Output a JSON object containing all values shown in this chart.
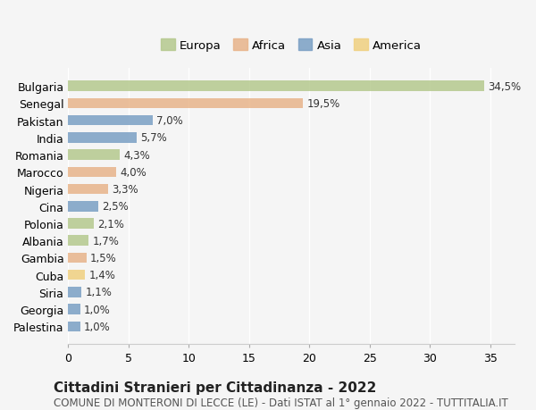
{
  "countries": [
    "Bulgaria",
    "Senegal",
    "Pakistan",
    "India",
    "Romania",
    "Marocco",
    "Nigeria",
    "Cina",
    "Polonia",
    "Albania",
    "Gambia",
    "Cuba",
    "Siria",
    "Georgia",
    "Palestina"
  ],
  "values": [
    34.5,
    19.5,
    7.0,
    5.7,
    4.3,
    4.0,
    3.3,
    2.5,
    2.1,
    1.7,
    1.5,
    1.4,
    1.1,
    1.0,
    1.0
  ],
  "labels": [
    "34,5%",
    "19,5%",
    "7,0%",
    "5,7%",
    "4,3%",
    "4,0%",
    "3,3%",
    "2,5%",
    "2,1%",
    "1,7%",
    "1,5%",
    "1,4%",
    "1,1%",
    "1,0%",
    "1,0%"
  ],
  "continents": [
    "Europa",
    "Africa",
    "Asia",
    "Asia",
    "Europa",
    "Africa",
    "Africa",
    "Asia",
    "Europa",
    "Europa",
    "Africa",
    "America",
    "Asia",
    "Asia",
    "Asia"
  ],
  "colors": {
    "Europa": "#b5c98e",
    "Africa": "#e8b48a",
    "Asia": "#7a9fc4",
    "America": "#f0d080"
  },
  "legend_order": [
    "Europa",
    "Africa",
    "Asia",
    "America"
  ],
  "legend_colors": [
    "#b5c98e",
    "#e8b48a",
    "#7a9fc4",
    "#f0d080"
  ],
  "xlim": [
    0,
    37
  ],
  "xticks": [
    0,
    5,
    10,
    15,
    20,
    25,
    30,
    35
  ],
  "background_color": "#f5f5f5",
  "title": "Cittadini Stranieri per Cittadinanza - 2022",
  "subtitle": "COMUNE DI MONTERONI DI LECCE (LE) - Dati ISTAT al 1° gennaio 2022 - TUTTITALIA.IT",
  "title_fontsize": 11,
  "subtitle_fontsize": 8.5,
  "label_fontsize": 8.5,
  "tick_fontsize": 9
}
